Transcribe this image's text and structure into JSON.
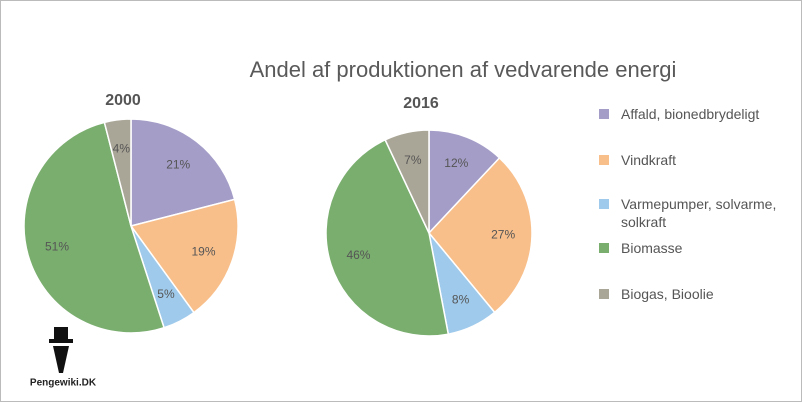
{
  "title": "Andel af produktionen af vedvarende energi",
  "watermark": "Pengewiki.DK",
  "chart_data": [
    {
      "type": "pie",
      "title": "2000",
      "categories": [
        "Affald, bionedbrydeligt",
        "Vindkraft",
        "Varmepumper, solvarme, solkraft",
        "Biomasse",
        "Biogas, Bioolie"
      ],
      "values": [
        21,
        19,
        5,
        51,
        4
      ],
      "value_labels": [
        "21%",
        "19%",
        "5%",
        "51%",
        "4%"
      ],
      "colors": [
        "#a49dc8",
        "#f8bf8b",
        "#9fcaeb",
        "#7aae6f",
        "#aaa697"
      ]
    },
    {
      "type": "pie",
      "title": "2016",
      "categories": [
        "Affald, bionedbrydeligt",
        "Vindkraft",
        "Varmepumper, solvarme, solkraft",
        "Biomasse",
        "Biogas, Bioolie"
      ],
      "values": [
        12,
        27,
        8,
        46,
        7
      ],
      "value_labels": [
        "12%",
        "27%",
        "8%",
        "46%",
        "7%"
      ],
      "colors": [
        "#a49dc8",
        "#f8bf8b",
        "#9fcaeb",
        "#7aae6f",
        "#aaa697"
      ]
    }
  ]
}
